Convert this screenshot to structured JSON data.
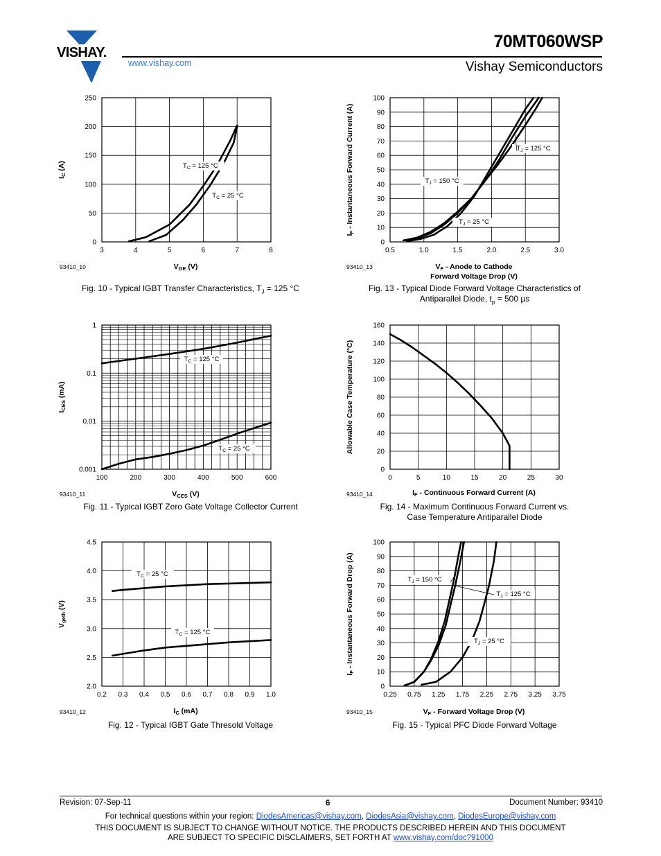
{
  "header": {
    "brand": "VISHAY.",
    "url": "www.vishay.com",
    "part_number": "70MT060WSP",
    "subtitle": "Vishay Semiconductors"
  },
  "footer": {
    "revision": "Revision: 07-Sep-11",
    "page": "6",
    "doc_number": "Document Number: 93410",
    "contact_prefix": "For technical questions within your region:",
    "emails": [
      "DiodesAmericas@vishay.com",
      "DiodesAsia@vishay.com",
      "DiodesEurope@vishay.com"
    ],
    "disclaimer1": "THIS DOCUMENT IS SUBJECT TO CHANGE WITHOUT NOTICE. THE PRODUCTS DESCRIBED HEREIN AND THIS DOCUMENT",
    "disclaimer2": "ARE SUBJECT TO SPECIFIC DISCLAIMERS, SET FORTH AT",
    "disclaimer_link": "www.vishay.com/doc?91000"
  },
  "chart_data": [
    {
      "id": "fig10",
      "type": "line",
      "fig_id": "93410_10",
      "caption": [
        "Fig. 10 - Typical IGBT Transfer Characteristics, T",
        "J",
        " = 125 °C"
      ],
      "ylabel": [
        "I",
        "C",
        " (A)"
      ],
      "xlabel": [
        "V",
        "GE",
        " (V)"
      ],
      "xlim": [
        3,
        8
      ],
      "ylim": [
        0,
        250
      ],
      "xticks": [
        3,
        4,
        5,
        6,
        7,
        8
      ],
      "xtick_labels": [
        "3",
        "4",
        "5",
        "6",
        "7",
        "8"
      ],
      "yticks": [
        0,
        50,
        100,
        150,
        200,
        250
      ],
      "ytick_labels": [
        "0",
        "50",
        "100",
        "150",
        "200",
        "250"
      ],
      "grid": true,
      "series": [
        {
          "x": [
            3.8,
            4.3,
            5.0,
            5.6,
            6.0,
            6.4,
            6.8,
            7.0
          ],
          "y": [
            1,
            8,
            30,
            65,
            97,
            132,
            176,
            202
          ]
        },
        {
          "x": [
            4.4,
            4.9,
            5.4,
            5.8,
            6.2,
            6.6,
            6.9,
            7.0
          ],
          "y": [
            1,
            12,
            38,
            65,
            98,
            136,
            172,
            200
          ]
        }
      ],
      "annotations": [
        {
          "parts": [
            "T",
            "C",
            " = 125 °C"
          ]
        },
        {
          "parts": [
            "T",
            "C",
            " = 25 °C"
          ]
        }
      ]
    },
    {
      "id": "fig13",
      "type": "line",
      "fig_id": "93410_13",
      "caption": [
        "Fig. 13 - Typical  Diode Forward Voltage Characteristics of",
        "Antiparallel Diode, t",
        "p",
        " = 500 µs"
      ],
      "ylabel": [
        "I",
        "F",
        " - Instantaneous Forward Current (A)"
      ],
      "xlabel_lines": [
        [
          "V",
          "F",
          " - Anode to Cathode"
        ],
        [
          "Forward Voltage Drop (V)"
        ]
      ],
      "xlim": [
        0.5,
        3.0
      ],
      "ylim": [
        0,
        100
      ],
      "xticks": [
        0.5,
        1.0,
        1.5,
        2.0,
        2.5,
        3.0
      ],
      "xtick_labels": [
        "0.5",
        "1.0",
        "1.5",
        "2.0",
        "2.5",
        "3.0"
      ],
      "yticks": [
        0,
        10,
        20,
        30,
        40,
        50,
        60,
        70,
        80,
        90,
        100
      ],
      "ytick_labels": [
        "0",
        "10",
        "20",
        "30",
        "40",
        "50",
        "60",
        "70",
        "80",
        "90",
        "100"
      ],
      "grid": true,
      "series": [
        {
          "x": [
            0.7,
            0.9,
            1.1,
            1.3,
            1.5,
            1.7,
            1.9,
            2.1,
            2.3,
            2.5,
            2.65,
            2.75
          ],
          "y": [
            1,
            3,
            7,
            13,
            21,
            30,
            42,
            54,
            67,
            81,
            92,
            100
          ]
        },
        {
          "x": [
            0.7,
            0.9,
            1.1,
            1.3,
            1.5,
            1.7,
            1.9,
            2.1,
            2.3,
            2.5,
            2.7
          ],
          "y": [
            1,
            2.5,
            6,
            12,
            20,
            30,
            42,
            56,
            72,
            87,
            100
          ]
        },
        {
          "x": [
            0.75,
            0.95,
            1.15,
            1.35,
            1.55,
            1.75,
            1.95,
            2.15,
            2.35,
            2.5,
            2.62
          ],
          "y": [
            0.5,
            2,
            5,
            11,
            20,
            32,
            48,
            64,
            80,
            92,
            100
          ]
        }
      ],
      "annotations": [
        {
          "parts": [
            "T",
            "J",
            " = 125 °C"
          ]
        },
        {
          "parts": [
            "T",
            "J",
            " = 150 °C"
          ]
        },
        {
          "parts": [
            "T",
            "J",
            " = 25 °C"
          ]
        }
      ]
    },
    {
      "id": "fig11",
      "type": "line",
      "fig_id": "93410_11",
      "log_y": true,
      "caption": [
        "Fig. 11 - Typical IGBT Zero Gate Voltage Collector Current"
      ],
      "ylabel": [
        "I",
        "CES",
        " (mA)"
      ],
      "xlabel": [
        "V",
        "CES",
        " (V)"
      ],
      "xlim": [
        100,
        600
      ],
      "ylim": [
        0.001,
        1
      ],
      "xticks": [
        100,
        200,
        300,
        400,
        500,
        600
      ],
      "xtick_labels": [
        "100",
        "200",
        "300",
        "400",
        "500",
        "600"
      ],
      "yticks": [
        0.001,
        0.01,
        0.1,
        1
      ],
      "ytick_labels": [
        "0.001",
        "0.01",
        "0.1",
        "1"
      ],
      "grid": true,
      "series": [
        {
          "x": [
            100,
            200,
            300,
            400,
            450,
            500,
            550,
            600
          ],
          "y": [
            0.16,
            0.2,
            0.25,
            0.32,
            0.37,
            0.43,
            0.51,
            0.6
          ]
        },
        {
          "x": [
            100,
            150,
            200,
            250,
            300,
            350,
            400,
            450,
            500,
            550,
            600
          ],
          "y": [
            0.001,
            0.0013,
            0.0016,
            0.0018,
            0.0021,
            0.0025,
            0.0031,
            0.0041,
            0.0055,
            0.0072,
            0.0093
          ]
        }
      ],
      "annotations": [
        {
          "parts": [
            "T",
            "C",
            " = 125 °C"
          ]
        },
        {
          "parts": [
            "T",
            "C",
            " = 25 °C"
          ]
        }
      ]
    },
    {
      "id": "fig14",
      "type": "line",
      "fig_id": "93410_14",
      "caption": [
        "Fig. 14 - Maximum Continuous Forward Current vs.",
        "Case Temperature Antiparallel Diode"
      ],
      "ylabel": [
        "Allowable Case Temperature (°C)"
      ],
      "xlabel": [
        "I",
        "F",
        " - Continuous Forward Current (A)"
      ],
      "xlim": [
        0,
        30
      ],
      "ylim": [
        0,
        160
      ],
      "xticks": [
        0,
        5,
        10,
        15,
        20,
        25,
        30
      ],
      "xtick_labels": [
        "0",
        "5",
        "10",
        "15",
        "20",
        "25",
        "30"
      ],
      "yticks": [
        0,
        20,
        40,
        60,
        80,
        100,
        120,
        140,
        160
      ],
      "ytick_labels": [
        "0",
        "20",
        "40",
        "60",
        "80",
        "100",
        "120",
        "140",
        "160"
      ],
      "grid": true,
      "series": [
        {
          "x": [
            0,
            2,
            4,
            6,
            8,
            10,
            12,
            14,
            16,
            18,
            20,
            21.2,
            21.2
          ],
          "y": [
            150,
            143,
            135,
            126,
            117,
            107,
            96,
            84,
            71,
            57,
            40,
            26,
            0
          ]
        }
      ]
    },
    {
      "id": "fig12",
      "type": "line",
      "fig_id": "93410_12",
      "caption": [
        "Fig. 12 - Typical IGBT Gate Thresold Voltage"
      ],
      "ylabel": [
        "V",
        "geth",
        " (V)"
      ],
      "xlabel": [
        "I",
        "C",
        " (mA)"
      ],
      "xlim": [
        0.2,
        1.0
      ],
      "ylim": [
        2.0,
        4.5
      ],
      "xticks": [
        0.2,
        0.3,
        0.4,
        0.5,
        0.6,
        0.7,
        0.8,
        0.9,
        1.0
      ],
      "xtick_labels": [
        "0.2",
        "0.3",
        "0.4",
        "0.5",
        "0.6",
        "0.7",
        "0.8",
        "0.9",
        "1.0"
      ],
      "yticks": [
        2.0,
        2.5,
        3.0,
        3.5,
        4.0,
        4.5
      ],
      "ytick_labels": [
        "2.0",
        "2.5",
        "3.0",
        "3.5",
        "4.0",
        "4.5"
      ],
      "grid": true,
      "series": [
        {
          "x": [
            0.25,
            0.3,
            0.4,
            0.5,
            0.6,
            0.7,
            0.8,
            0.9,
            1.0
          ],
          "y": [
            3.65,
            3.67,
            3.7,
            3.73,
            3.75,
            3.77,
            3.78,
            3.79,
            3.8
          ]
        },
        {
          "x": [
            0.25,
            0.3,
            0.4,
            0.5,
            0.6,
            0.7,
            0.8,
            0.9,
            1.0
          ],
          "y": [
            2.53,
            2.56,
            2.62,
            2.67,
            2.7,
            2.73,
            2.76,
            2.78,
            2.8
          ]
        }
      ],
      "annotations": [
        {
          "parts": [
            "T",
            "C",
            " = 25 °C"
          ]
        },
        {
          "parts": [
            "T",
            "C",
            " = 125 °C"
          ]
        }
      ]
    },
    {
      "id": "fig15",
      "type": "line",
      "fig_id": "93410_15",
      "caption": [
        "Fig. 15 - Typical PFC Diode Forward Voltage"
      ],
      "ylabel": [
        "I",
        "F",
        " - Instantaneous Forward Drop (A)"
      ],
      "xlabel": [
        "V",
        "F",
        " - Forward Voltage Drop (V)"
      ],
      "xlim": [
        0.25,
        3.75
      ],
      "ylim": [
        0,
        100
      ],
      "xticks": [
        0.25,
        0.75,
        1.25,
        1.75,
        2.25,
        2.75,
        3.25,
        3.75
      ],
      "xtick_labels": [
        "0.25",
        "0.75",
        "1.25",
        "1.75",
        "2.25",
        "2.75",
        "3.25",
        "3.75"
      ],
      "yticks": [
        0,
        10,
        20,
        30,
        40,
        50,
        60,
        70,
        80,
        90,
        100
      ],
      "ytick_labels": [
        "0",
        "10",
        "20",
        "30",
        "40",
        "50",
        "60",
        "70",
        "80",
        "90",
        "100"
      ],
      "grid": true,
      "series": [
        {
          "x": [
            0.55,
            0.75,
            0.95,
            1.1,
            1.25,
            1.4,
            1.5,
            1.6,
            1.7,
            1.78
          ],
          "y": [
            0.5,
            3,
            10,
            18,
            28,
            42,
            56,
            70,
            86,
            100
          ]
        },
        {
          "x": [
            0.55,
            0.75,
            0.95,
            1.1,
            1.25,
            1.38,
            1.48,
            1.58,
            1.66,
            1.72
          ],
          "y": [
            0.5,
            3,
            10,
            19,
            31,
            45,
            60,
            75,
            90,
            100
          ]
        },
        {
          "x": [
            0.9,
            1.2,
            1.5,
            1.75,
            1.95,
            2.1,
            2.2,
            2.3,
            2.4,
            2.45
          ],
          "y": [
            1,
            3,
            10,
            20,
            32,
            45,
            57,
            70,
            87,
            100
          ]
        }
      ],
      "annotations": [
        {
          "parts": [
            "T",
            "J",
            " = 150 °C"
          ]
        },
        {
          "parts": [
            "T",
            "J",
            " = 125 °C"
          ]
        },
        {
          "parts": [
            "T",
            "J",
            " = 25 °C"
          ]
        }
      ]
    }
  ]
}
